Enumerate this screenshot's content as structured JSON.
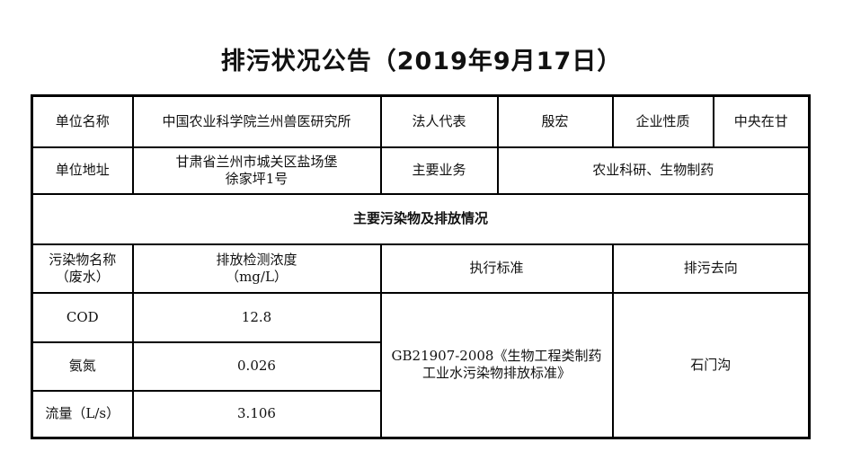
{
  "title": "排污状况公告（2019年9月17日）",
  "info": {
    "unit_name_label": "单位名称",
    "unit_name": "中国农业科学院兰州兽医研究所",
    "legal_rep_label": "法人代表",
    "legal_rep": "殷宏",
    "nature_label": "企业性质",
    "nature": "中央在甘",
    "address_label": "单位地址",
    "address_line1": "甘肃省兰州市城关区盐场堡",
    "address_line2": "徐家坪1号",
    "business_label": "主要业务",
    "business": "农业科研、生物制药"
  },
  "section_title": "主要污染物及排放情况",
  "headers": {
    "pollutant_line1": "污染物名称",
    "pollutant_line2": "（废水）",
    "conc_line1": "排放检测浓度",
    "conc_line2": "（mg/L）",
    "standard": "执行标准",
    "destination": "排污去向"
  },
  "rows": [
    {
      "name": "COD",
      "value": "12.8"
    },
    {
      "name": "氨氮",
      "value": "0.026"
    },
    {
      "name": "流量（L/s）",
      "value": "3.106"
    }
  ],
  "standard_line1": "GB21907-2008《生物工程类制药",
  "standard_line2": "工业水污染物排放标准》",
  "destination": "石门沟"
}
